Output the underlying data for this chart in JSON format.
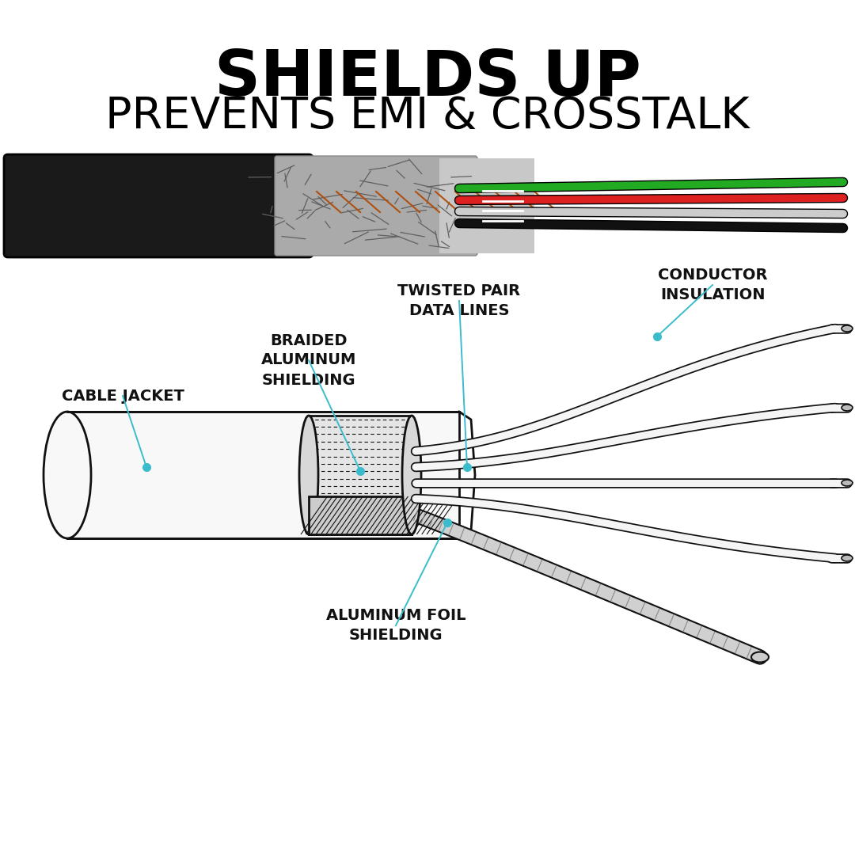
{
  "title_line1": "SHIELDS UP",
  "title_line2": "PREVENTS EMI & CROSSTALK",
  "title_line1_fontsize": 58,
  "title_line2_fontsize": 40,
  "bg_color": "#ffffff",
  "line_color": "#111111",
  "dot_color": "#3bbccc",
  "label_fontsize": 14,
  "labels": {
    "cable_jacket": "CABLE JACKET",
    "braided": "BRAIDED\nALUMINUM\nSHIELDING",
    "twisted_pair": "TWISTED PAIR\nDATA LINES",
    "conductor": "CONDUCTOR\nINSULATION",
    "foil": "ALUMINUM FOIL\nSHIELDING"
  }
}
